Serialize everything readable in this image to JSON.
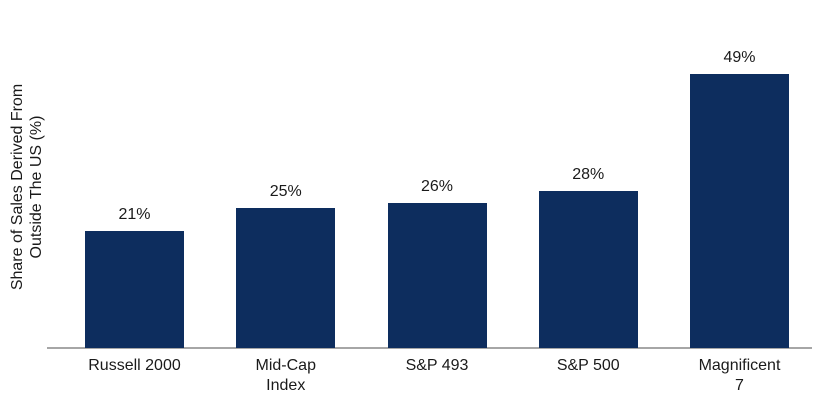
{
  "chart_data": {
    "type": "bar",
    "title": "",
    "xlabel": "",
    "ylabel": "Share of Sales Derived From Outside The US (%)",
    "ylabel_lines": [
      "Share of Sales Derived From",
      "Outside The US (%)"
    ],
    "categories": [
      "Russell 2000",
      "Mid-Cap Index",
      "S&P 493",
      "S&P 500",
      "Magnificent 7"
    ],
    "categories_lines": [
      [
        "Russell 2000"
      ],
      [
        "Mid-Cap",
        "Index"
      ],
      [
        "S&P 493"
      ],
      [
        "S&P 500"
      ],
      [
        "Magnificent",
        "7"
      ]
    ],
    "values": [
      21,
      25,
      26,
      28,
      49
    ],
    "data_labels": [
      "21%",
      "25%",
      "26%",
      "28%",
      "49%"
    ],
    "ylim": [
      0,
      55
    ],
    "grid": false,
    "legend": "none",
    "colors": {
      "bar": "#0d2d5e",
      "axis_line": "#a6a6a6",
      "text": "#1a1a1a"
    }
  }
}
